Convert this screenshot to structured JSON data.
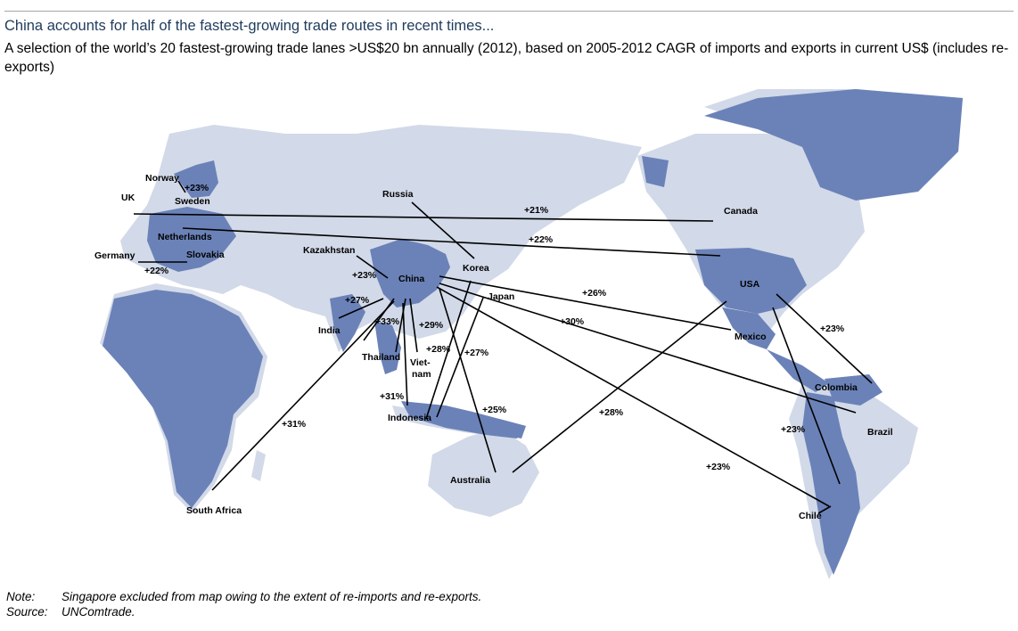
{
  "title": "China accounts for half of the fastest-growing trade routes in recent times...",
  "subtitle": "A selection of the world’s 20 fastest-growing trade lanes >US$20 bn annually (2012), based on 2005-2012 CAGR of imports and exports in current US$ (includes re-exports)",
  "colors": {
    "land_light": "#d2d9e8",
    "land_dark": "#6b82b8",
    "title": "#1f3b5c"
  },
  "countries": {
    "norway": "Norway",
    "sweden": "Sweden",
    "uk": "UK",
    "netherlands": "Netherlands",
    "germany": "Germany",
    "slovakia": "Slovakia",
    "russia": "Russia",
    "kazakhstan": "Kazakhstan",
    "china": "China",
    "korea": "Korea",
    "japan": "Japan",
    "india": "India",
    "thailand": "Thailand",
    "vietnam_1": "Viet-",
    "vietnam_2": "nam",
    "indonesia": "Indonesia",
    "australia": "Australia",
    "south_africa": "South Africa",
    "canada": "Canada",
    "usa": "USA",
    "mexico": "Mexico",
    "colombia": "Colombia",
    "brazil": "Brazil",
    "chile": "Chile"
  },
  "growth": {
    "norway_sweden": "+23%",
    "uk_canada": "+21%",
    "netherlands_usa": "+22%",
    "germany_slovakia": "+22%",
    "china_kazakhstan": "+23%",
    "china_india": "+27%",
    "china_thailand": "+33%",
    "china_vietnam": "+29%",
    "china_indonesia_a": "+28%",
    "japan_indonesia": "+27%",
    "china_indonesia_b": "+31%",
    "china_australia": "+25%",
    "china_south_africa": "+31%",
    "china_mexico": "+26%",
    "china_brazil": "+30%",
    "australia_usa": "+28%",
    "china_chile": "+23%",
    "usa_colombia": "+23%",
    "usa_chile": "+23%"
  },
  "notes": {
    "note_key": "Note:",
    "note_text": "Singapore excluded from map owing to the extent of re-imports and re-exports.",
    "source_key": "Source:",
    "source_text": "UNComtrade."
  }
}
